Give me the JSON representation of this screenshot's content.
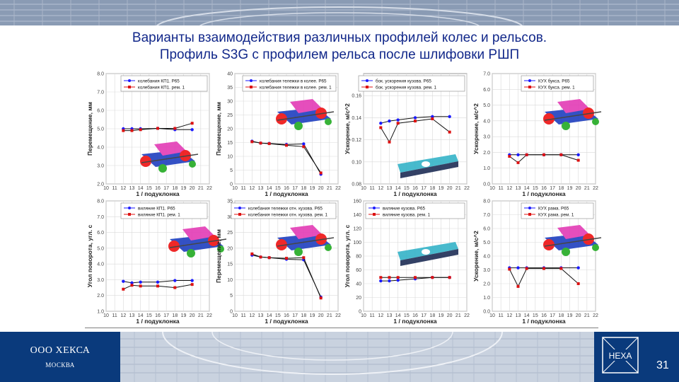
{
  "slide": {
    "title_line1": "Варианты взаимодействия различных профилей колес и рельсов.",
    "title_line2": "Профиль S3G с профилем рельса после шлифовки РШП",
    "company": "ООО ХЕКСА",
    "city": "МОСКВА",
    "logo_text": "HEXA",
    "page_number": "31",
    "colors": {
      "title": "#12288a",
      "brand": "#0a3a7c",
      "series_a": "#1a1aff",
      "series_b": "#dd1111"
    }
  },
  "chart_data": [
    {
      "type": "line",
      "xlabel": "1 / подуклонка",
      "ylabel": "Перемещение, мм",
      "xlim": [
        10,
        22
      ],
      "ylim": [
        2,
        8
      ],
      "yticks": [
        "2.0",
        "3.0",
        "4.0",
        "5.0",
        "6.0",
        "7.0",
        "8.0"
      ],
      "ytick_values": [
        2,
        3,
        4,
        5,
        6,
        7,
        8
      ],
      "series": [
        {
          "name": "колебания КП1. Р65",
          "x": [
            12,
            13,
            14,
            16,
            18,
            20
          ],
          "values": [
            5.0,
            5.0,
            5.0,
            5.02,
            4.95,
            4.95
          ]
        },
        {
          "name": "колебания КП1. рем. 1",
          "x": [
            12,
            13,
            14,
            16,
            18,
            20
          ],
          "values": [
            4.9,
            4.9,
            4.95,
            5.02,
            5.02,
            5.3
          ]
        }
      ]
    },
    {
      "type": "line",
      "xlabel": "1 / подуклонка",
      "ylabel": "Перемещение, мм",
      "xlim": [
        10,
        22
      ],
      "ylim": [
        0,
        40
      ],
      "yticks": [
        "0",
        "5",
        "10",
        "15",
        "20",
        "25",
        "30",
        "35",
        "40"
      ],
      "ytick_values": [
        0,
        5,
        10,
        15,
        20,
        25,
        30,
        35,
        40
      ],
      "series": [
        {
          "name": "колебания тележки в колее. Р65",
          "x": [
            12,
            13,
            14,
            16,
            18,
            20
          ],
          "values": [
            15.5,
            14.8,
            14.7,
            14.3,
            14.5,
            3.5
          ]
        },
        {
          "name": "колебания тележки в колее. рем. 1",
          "x": [
            12,
            13,
            14,
            16,
            18,
            20
          ],
          "values": [
            15.3,
            14.8,
            14.6,
            14.0,
            13.5,
            4.0
          ]
        }
      ]
    },
    {
      "type": "line",
      "xlabel": "1 / подуклонка",
      "ylabel": "Ускорение, м/с^2",
      "xlim": [
        10,
        22
      ],
      "ylim": [
        0.08,
        0.18
      ],
      "yticks": [
        "0.08",
        "0.10",
        "0.12",
        "0.14",
        "0.16"
      ],
      "ytick_values": [
        0.08,
        0.1,
        0.12,
        0.14,
        0.16
      ],
      "series": [
        {
          "name": "бок. ускорения кузова. Р65",
          "x": [
            12,
            13,
            14,
            16,
            18,
            20
          ],
          "values": [
            0.135,
            0.137,
            0.138,
            0.14,
            0.141,
            0.141
          ]
        },
        {
          "name": "бок. ускорения кузова. рем. 1",
          "x": [
            12,
            13,
            14,
            16,
            18,
            20
          ],
          "values": [
            0.131,
            0.118,
            0.135,
            0.137,
            0.139,
            0.127
          ]
        }
      ]
    },
    {
      "type": "line",
      "xlabel": "1 / подуклонка",
      "ylabel": "Ускорение, м/с^2",
      "xlim": [
        10,
        22
      ],
      "ylim": [
        0,
        7
      ],
      "yticks": [
        "0.0",
        "1.0",
        "2.0",
        "3.0",
        "4.0",
        "5.0",
        "6.0",
        "7.0"
      ],
      "ytick_values": [
        0,
        1,
        2,
        3,
        4,
        5,
        6,
        7
      ],
      "series": [
        {
          "name": "КУХ букса. Р65",
          "x": [
            12,
            13,
            14,
            16,
            18,
            20
          ],
          "values": [
            1.85,
            1.85,
            1.85,
            1.85,
            1.85,
            1.85
          ]
        },
        {
          "name": "КУХ букса. рем. 1",
          "x": [
            12,
            13,
            14,
            16,
            18,
            20
          ],
          "values": [
            1.75,
            1.35,
            1.85,
            1.85,
            1.85,
            1.5
          ]
        }
      ]
    },
    {
      "type": "line",
      "xlabel": "1 / подуклонка",
      "ylabel": "Угол поворота, угл. с",
      "xlim": [
        10,
        22
      ],
      "ylim": [
        1,
        8
      ],
      "yticks": [
        "1.0",
        "2.0",
        "3.0",
        "4.0",
        "5.0",
        "6.0",
        "7.0",
        "8.0"
      ],
      "ytick_values": [
        1,
        2,
        3,
        4,
        5,
        6,
        7,
        8
      ],
      "series": [
        {
          "name": "виляние КП1. Р65",
          "x": [
            12,
            13,
            14,
            16,
            18,
            20
          ],
          "values": [
            2.9,
            2.8,
            2.85,
            2.85,
            2.95,
            2.95
          ]
        },
        {
          "name": "виляние КП1. рем. 1",
          "x": [
            12,
            13,
            14,
            16,
            18,
            20
          ],
          "values": [
            2.4,
            2.65,
            2.6,
            2.6,
            2.5,
            2.7
          ]
        }
      ]
    },
    {
      "type": "line",
      "xlabel": "1 / подуклонка",
      "ylabel": "Перемещение, мм",
      "xlim": [
        10,
        22
      ],
      "ylim": [
        0,
        35
      ],
      "yticks": [
        "0",
        "5",
        "10",
        "15",
        "20",
        "25",
        "30",
        "35"
      ],
      "ytick_values": [
        0,
        5,
        10,
        15,
        20,
        25,
        30,
        35
      ],
      "series": [
        {
          "name": "колебания тележки отн. кузова. Р65",
          "x": [
            12,
            13,
            14,
            16,
            18,
            20
          ],
          "values": [
            17.8,
            17.2,
            17.0,
            16.5,
            16.3,
            4.5
          ]
        },
        {
          "name": "колебания тележки отн. кузова. рем. 1",
          "x": [
            12,
            13,
            14,
            16,
            18,
            20
          ],
          "values": [
            18.2,
            17.2,
            17.0,
            16.8,
            17.0,
            4.2
          ]
        }
      ]
    },
    {
      "type": "line",
      "xlabel": "1 / подуклонка",
      "ylabel": "Угол поворота, угл. с",
      "xlim": [
        10,
        22
      ],
      "ylim": [
        0,
        160
      ],
      "yticks": [
        "0",
        "20",
        "40",
        "60",
        "80",
        "100",
        "120",
        "140",
        "160"
      ],
      "ytick_values": [
        0,
        20,
        40,
        60,
        80,
        100,
        120,
        140,
        160
      ],
      "series": [
        {
          "name": "виляние кузова. Р65",
          "x": [
            12,
            13,
            14,
            16,
            18,
            20
          ],
          "values": [
            44,
            44,
            45,
            47,
            49,
            49
          ]
        },
        {
          "name": "виляние кузова. рем. 1",
          "x": [
            12,
            13,
            14,
            16,
            18,
            20
          ],
          "values": [
            49,
            49,
            49,
            49,
            49,
            49
          ]
        }
      ]
    },
    {
      "type": "line",
      "xlabel": "1 / подуклонка",
      "ylabel": "Ускорение, м/с^2",
      "xlim": [
        10,
        22
      ],
      "ylim": [
        0,
        8
      ],
      "yticks": [
        "0.0",
        "1.0",
        "2.0",
        "3.0",
        "4.0",
        "5.0",
        "6.0",
        "7.0",
        "8.0"
      ],
      "ytick_values": [
        0,
        1,
        2,
        3,
        4,
        5,
        6,
        7,
        8
      ],
      "series": [
        {
          "name": "КУХ рама. Р65",
          "x": [
            12,
            13,
            14,
            16,
            18,
            20
          ],
          "values": [
            3.15,
            3.15,
            3.15,
            3.15,
            3.15,
            3.15
          ]
        },
        {
          "name": "КУХ рама. рем. 1",
          "x": [
            12,
            13,
            14,
            16,
            18,
            20
          ],
          "values": [
            3.05,
            1.8,
            3.1,
            3.1,
            3.1,
            2.0
          ]
        }
      ]
    }
  ]
}
